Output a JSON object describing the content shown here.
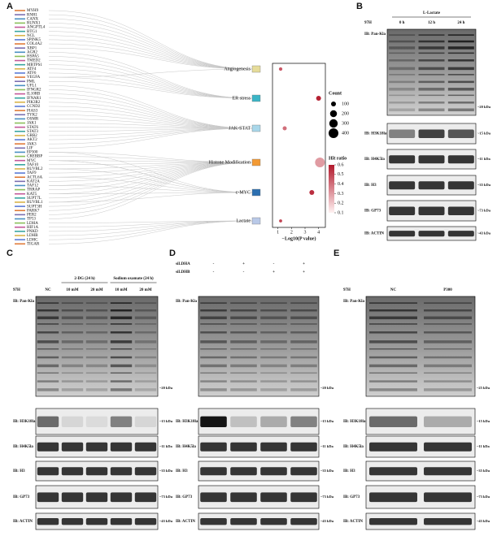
{
  "panel_labels": [
    "A",
    "B",
    "C",
    "D",
    "E"
  ],
  "genes": [
    "MYH9",
    "RNH1",
    "CANX",
    "RUNX1",
    "ANGPTL4",
    "BTG1",
    "NCL",
    "SPINK5",
    "COL4A2",
    "XBP1",
    "AGR2",
    "HSPA5",
    "TMED2",
    "MBTPS1",
    "ATF4",
    "ATF6",
    "VEGFA",
    "PML",
    "UFL1",
    "IFNGR2",
    "IL10RB",
    "IFNAR1",
    "PIK3R2",
    "CCND2",
    "PIAS3",
    "TYK2",
    "OSMR",
    "JAK1",
    "STAT6",
    "STAT3",
    "GRB2",
    "AKT2",
    "JAK3",
    "LIF",
    "EP300",
    "CREBBP",
    "MYC",
    "TAF10",
    "RUVBL2",
    "TAF9",
    "ACTL6A",
    "KAT2A",
    "TAF12",
    "TRRAP",
    "KAT5",
    "SUPT7L",
    "RUVBL1",
    "SUPT3H",
    "PARK7",
    "PER2",
    "TP53",
    "LDHA",
    "HIF1A",
    "PNKD",
    "LDHB",
    "LDHC",
    "TIGAR"
  ],
  "chart_data": {
    "type": "scatter",
    "categories": [
      "Angiogenesis",
      "ER stress",
      "JAK-STAT",
      "Histone Modification",
      "c-MYC",
      "Lactate"
    ],
    "pathway_colors": [
      "#e6dc9a",
      "#3bb5c6",
      "#a9d7ea",
      "#f39a34",
      "#2c6fb0",
      "#b9c9e8"
    ],
    "values": [
      1.2,
      4.0,
      1.5,
      4.1,
      3.5,
      1.2
    ],
    "sizes": [
      50,
      100,
      70,
      400,
      100,
      40
    ],
    "hit_ratio": [
      0.45,
      0.58,
      0.4,
      0.3,
      0.55,
      0.5
    ],
    "xlim": [
      0.6,
      4.5
    ],
    "xticks": [
      1,
      2,
      3,
      4
    ],
    "xlabel": "−Log10(P value)",
    "size_legend": {
      "title": "Count",
      "values": [
        100,
        200,
        300,
        400
      ]
    },
    "color_legend": {
      "title": "Hit ratio",
      "ticks": [
        0.6,
        0.5,
        0.4,
        0.3,
        0.2,
        0.1
      ],
      "colors": [
        "#fff2f2",
        "#b2182b"
      ]
    }
  },
  "blots": [
    {
      "cell": "97H",
      "treatment": "L-Lactate",
      "lanes": [
        "0 h",
        "12 h",
        "24 h"
      ],
      "rows": [
        {
          "antibody": "IB: Pan-Kla",
          "marker": "~20 kDa"
        },
        {
          "antibody": "IB: H3K18la",
          "marker": "~15 kDa"
        },
        {
          "antibody": "IB: H4K5la",
          "marker": "~11 kDa"
        },
        {
          "antibody": "IB: H3",
          "marker": "~35 kDa"
        },
        {
          "antibody": "IB: GP73",
          "marker": "~73 kDa"
        },
        {
          "antibody": "IB: ACTIN",
          "marker": "~43 kDa"
        }
      ]
    },
    {
      "cell": "97H",
      "lanes": [
        "NC",
        "10 mM",
        "20 mM",
        "10 mM",
        "20 mM"
      ],
      "groups": [
        "2-DG (24 h)",
        "Sodium oxamate (24 h)"
      ],
      "rows": [
        {
          "antibody": "IB: Pan-Kla",
          "marker": "~20 kDa"
        },
        {
          "antibody": "IB: H3K18la",
          "marker": "~15 kDa"
        },
        {
          "antibody": "IB: H4K5la",
          "marker": "~11 kDa"
        },
        {
          "antibody": "IB: H3",
          "marker": "~35 kDa"
        },
        {
          "antibody": "IB: GP73",
          "marker": "~73 kDa"
        },
        {
          "antibody": "IB: ACTIN",
          "marker": "~43 kDa"
        }
      ]
    },
    {
      "conditions": [
        {
          "name": "siLDHA",
          "signs": [
            "-",
            "+",
            "-",
            "+"
          ]
        },
        {
          "name": "siLDHB",
          "signs": [
            "-",
            "-",
            "+",
            "+"
          ]
        }
      ],
      "rows": [
        {
          "antibody": "IB: Pan-Kla",
          "marker": "~20 kDa"
        },
        {
          "antibody": "IB: H3K18la",
          "marker": "~15 kDa"
        },
        {
          "antibody": "IB: H4K5la",
          "marker": "~11 kDa"
        },
        {
          "antibody": "IB: H3",
          "marker": "~35 kDa"
        },
        {
          "antibody": "IB: GP73",
          "marker": "~73 kDa"
        },
        {
          "antibody": "IB: ACTIN",
          "marker": "~43 kDa"
        }
      ]
    },
    {
      "cell": "97H",
      "lanes": [
        "NC",
        "P300"
      ],
      "rows": [
        {
          "antibody": "IB: Pan-Kla",
          "marker": "~25 kDa"
        },
        {
          "antibody": "IB: H3K18la",
          "marker": "~15 kDa"
        },
        {
          "antibody": "IB: H4K5la",
          "marker": "~11 kDa"
        },
        {
          "antibody": "IB: H3",
          "marker": "~35 kDa"
        },
        {
          "antibody": "IB: GP73",
          "marker": "~73 kDa"
        },
        {
          "antibody": "IB: ACTIN",
          "marker": "~43 kDa"
        }
      ]
    }
  ]
}
